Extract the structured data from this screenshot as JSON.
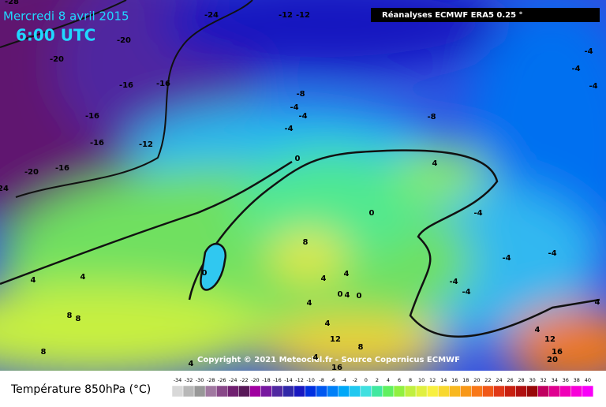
{
  "header": {
    "date": "Mercredi 8 avril 2015",
    "time": "6:00 UTC",
    "source": "Réanalyses ECMWF ERA5 0.25 °"
  },
  "map": {
    "copyright": "Copyright © 2021 Meteociel.fr - Source Copernicus ECMWF",
    "contour_labels": [
      "-28",
      "-24",
      "-12",
      "-12",
      "-20",
      "-20",
      "-16",
      "-16",
      "-16",
      "-16",
      "-12",
      "-20",
      "-16",
      "24",
      "-8",
      "-4",
      "-4",
      "-4",
      "-8",
      "0",
      "4",
      "0",
      "-4",
      "8",
      "0",
      "4",
      "4",
      "-4",
      "-4",
      "-4",
      "-4",
      "4",
      "4",
      "0",
      "0",
      "4",
      "4",
      "8",
      "8",
      "8",
      "4",
      "12",
      "8",
      "12",
      "16",
      "20",
      "4",
      "-4",
      "-4",
      "-4",
      "4",
      "4",
      "4",
      "16"
    ]
  },
  "legend": {
    "title": "Température 850hPa (°C)",
    "ticks": [
      -34,
      -32,
      -30,
      -28,
      -26,
      -24,
      -22,
      -20,
      -18,
      -16,
      -14,
      -12,
      -10,
      -8,
      -6,
      -4,
      -2,
      0,
      2,
      4,
      6,
      8,
      10,
      12,
      14,
      16,
      18,
      20,
      22,
      24,
      26,
      28,
      30,
      32,
      34,
      36,
      38,
      40
    ],
    "colors": [
      "#d8d8d8",
      "#b8b8b8",
      "#989898",
      "#a078a0",
      "#884888",
      "#702070",
      "#581858",
      "#a000a0",
      "#7818a0",
      "#5028a0",
      "#3028a8",
      "#1818c0",
      "#0030e0",
      "#0058f0",
      "#0080f8",
      "#00a8f8",
      "#20c8f0",
      "#40e0e0",
      "#40e8a0",
      "#60f060",
      "#90f040",
      "#c0f040",
      "#e0f040",
      "#f8f040",
      "#f8d830",
      "#f8b820",
      "#f89818",
      "#f87818",
      "#f05818",
      "#e03818",
      "#c82010",
      "#b01010",
      "#980808",
      "#c00060",
      "#e00090",
      "#f000b8",
      "#f800d8",
      "#f800f8"
    ]
  }
}
